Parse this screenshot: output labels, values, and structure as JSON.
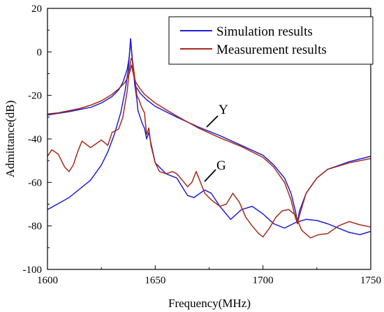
{
  "chart_data": {
    "type": "line",
    "xlabel": "Frequency(MHz)",
    "ylabel": "Admittance(dB)",
    "xlim": [
      1600,
      1750
    ],
    "ylim": [
      -100,
      20
    ],
    "xticks": [
      1600,
      1650,
      1700,
      1750
    ],
    "yticks": [
      -100,
      -80,
      -60,
      -40,
      -20,
      0,
      20
    ],
    "legend_position": "top-right",
    "colors": {
      "simulation": "#1f1fd6",
      "measurement": "#a52a1a"
    },
    "series": [
      {
        "name": "Simulation results",
        "curve": "Y",
        "x": [
          1600,
          1610,
          1620,
          1625,
          1630,
          1633,
          1635,
          1637,
          1638,
          1638.6,
          1639.2,
          1640,
          1641,
          1643,
          1646,
          1650,
          1660,
          1670,
          1680,
          1690,
          1700,
          1705,
          1710,
          1713,
          1715,
          1716,
          1717,
          1720,
          1725,
          1730,
          1740,
          1750
        ],
        "y": [
          -29,
          -27.5,
          -25.5,
          -23.5,
          -20.5,
          -17.5,
          -14,
          -8,
          -2,
          6,
          -2,
          -10,
          -16,
          -19,
          -22,
          -25,
          -30,
          -34.5,
          -38.5,
          -43,
          -47.5,
          -52,
          -58,
          -65,
          -73,
          -78,
          -73,
          -65,
          -58,
          -54,
          -50.5,
          -48
        ]
      },
      {
        "name": "Simulation results",
        "curve": "G",
        "x": [
          1600,
          1610,
          1620,
          1625,
          1628,
          1631,
          1634,
          1636,
          1637.5,
          1638.6,
          1639.5,
          1640.5,
          1641.5,
          1642,
          1643,
          1644,
          1645,
          1646,
          1647,
          1648,
          1650,
          1655,
          1660,
          1665,
          1668,
          1670,
          1673,
          1676,
          1680,
          1685,
          1690,
          1695,
          1700,
          1705,
          1710,
          1715,
          1720,
          1725,
          1730,
          1735,
          1740,
          1745,
          1750
        ],
        "y": [
          -72.5,
          -67,
          -59,
          -52,
          -46,
          -38,
          -28,
          -18,
          -8,
          6,
          -5,
          -15,
          -22,
          -27,
          -30,
          -33,
          -35,
          -40,
          -37,
          -42,
          -51,
          -56,
          -58,
          -66,
          -67,
          -65.5,
          -63.5,
          -65,
          -71,
          -77,
          -72.5,
          -71,
          -74.5,
          -79,
          -81,
          -78.5,
          -77,
          -77.5,
          -79,
          -81,
          -83,
          -84,
          -82.5
        ]
      },
      {
        "name": "Measurement results",
        "curve": "Y",
        "x": [
          1600,
          1605,
          1610,
          1615,
          1620,
          1625,
          1630,
          1633,
          1636,
          1638,
          1639,
          1640,
          1641,
          1643,
          1645,
          1650,
          1660,
          1670,
          1680,
          1690,
          1700,
          1705,
          1710,
          1713,
          1715,
          1716,
          1717,
          1720,
          1725,
          1730,
          1740,
          1750
        ],
        "y": [
          -28.5,
          -28,
          -27,
          -26,
          -24.5,
          -22.5,
          -19.5,
          -17,
          -14,
          -10,
          -6,
          -11,
          -14,
          -17,
          -19.5,
          -23.5,
          -29.5,
          -35,
          -39.5,
          -43.5,
          -48.5,
          -53,
          -60,
          -68,
          -76,
          -79,
          -75,
          -65,
          -58,
          -54,
          -51,
          -49
        ]
      },
      {
        "name": "Measurement results",
        "curve": "G",
        "x": [
          1600,
          1602,
          1605,
          1608,
          1610,
          1612,
          1614,
          1616,
          1620,
          1625,
          1628,
          1630,
          1633,
          1635,
          1637,
          1638,
          1638.8,
          1639.5,
          1640.5,
          1641.5,
          1642.5,
          1643.5,
          1645,
          1646,
          1647,
          1648,
          1650,
          1652,
          1655,
          1658,
          1660,
          1663,
          1665,
          1667,
          1669,
          1671,
          1673,
          1676,
          1680,
          1683,
          1686,
          1689,
          1692,
          1695,
          1698,
          1700,
          1703,
          1706,
          1709,
          1712,
          1715,
          1718,
          1722,
          1726,
          1730,
          1735,
          1740,
          1745,
          1750
        ],
        "y": [
          -48,
          -45,
          -47,
          -53,
          -55,
          -52,
          -46,
          -41,
          -44,
          -40.5,
          -43,
          -37,
          -35.5,
          -30,
          -18,
          -8,
          -3,
          -4,
          -12,
          -20,
          -22,
          -25,
          -28,
          -38,
          -35,
          -43,
          -51,
          -55,
          -56,
          -55,
          -56,
          -59.5,
          -62,
          -60,
          -55,
          -60,
          -65,
          -68,
          -71,
          -70,
          -65,
          -69,
          -76,
          -80,
          -83.5,
          -85,
          -81,
          -76,
          -73,
          -72.5,
          -75,
          -82,
          -85.5,
          -84,
          -83.5,
          -80,
          -78,
          -79.5,
          -80.5
        ]
      }
    ],
    "annotations": [
      "Y",
      "G"
    ]
  }
}
